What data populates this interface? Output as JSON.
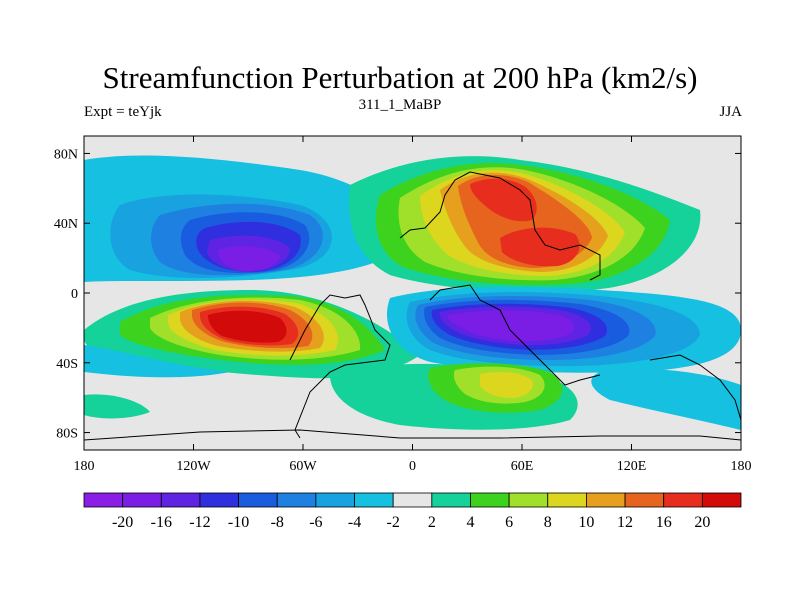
{
  "chart_data": {
    "type": "contour-map",
    "title": "Streamfunction Perturbation at 200 hPa (km2/s)",
    "left_label": "Expt = teYjk",
    "center_label": "311_1_MaBP",
    "right_label": "JJA",
    "xlim": [
      -180,
      180
    ],
    "ylim": [
      -90,
      90
    ],
    "x_ticks": [
      {
        "value": -180,
        "label": "180"
      },
      {
        "value": -120,
        "label": "120W"
      },
      {
        "value": -60,
        "label": "60W"
      },
      {
        "value": 0,
        "label": "0"
      },
      {
        "value": 60,
        "label": "60E"
      },
      {
        "value": 120,
        "label": "120E"
      },
      {
        "value": 180,
        "label": "180"
      }
    ],
    "y_ticks": [
      {
        "value": 80,
        "label": "80N"
      },
      {
        "value": 40,
        "label": "40N"
      },
      {
        "value": 0,
        "label": "0"
      },
      {
        "value": -40,
        "label": "40S"
      },
      {
        "value": -80,
        "label": "80S"
      }
    ],
    "colorbar": {
      "levels": [
        "-20",
        "-16",
        "-12",
        "-10",
        "-8",
        "-6",
        "-4",
        "-2",
        "2",
        "4",
        "6",
        "8",
        "10",
        "12",
        "16",
        "20"
      ],
      "colors": [
        "#8a1ee6",
        "#7a1ee6",
        "#5f24e3",
        "#2f2fe0",
        "#1a5ce0",
        "#1e80e0",
        "#19a2e0",
        "#15c0e0",
        "#e6e6e6",
        "#14d29a",
        "#3cd21e",
        "#a0e02a",
        "#dcd61e",
        "#e6a01e",
        "#e6641e",
        "#e62d1e",
        "#d20a0a"
      ]
    },
    "features": [
      {
        "name": "trough-north-pacific-atlantic",
        "sign": "negative",
        "center": [
          -85,
          15
        ],
        "peak": -16
      },
      {
        "name": "ridge-south-america",
        "sign": "positive",
        "center": [
          -70,
          -22
        ],
        "peak": 20
      },
      {
        "name": "ridge-eurasia-north",
        "sign": "positive",
        "center": [
          50,
          48
        ],
        "peak": 16
      },
      {
        "name": "ridge-asia",
        "sign": "positive",
        "center": [
          85,
          25
        ],
        "peak": 16
      },
      {
        "name": "trough-indian-ocean",
        "sign": "negative",
        "center": [
          60,
          -22
        ],
        "peak": -16
      },
      {
        "name": "ridge-south-indian-ocean",
        "sign": "positive",
        "center": [
          55,
          -55
        ],
        "peak": 8
      }
    ]
  }
}
